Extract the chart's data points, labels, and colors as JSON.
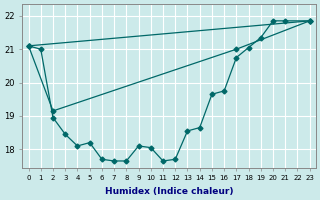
{
  "xlabel": "Humidex (Indice chaleur)",
  "ylabel": "",
  "bg_color": "#cceaea",
  "grid_color": "#ffffff",
  "line_color": "#006868",
  "xlim": [
    -0.5,
    23.5
  ],
  "ylim": [
    17.45,
    22.35
  ],
  "xticks": [
    0,
    1,
    2,
    3,
    4,
    5,
    6,
    7,
    8,
    9,
    10,
    11,
    12,
    13,
    14,
    15,
    16,
    17,
    18,
    19,
    20,
    21,
    22,
    23
  ],
  "yticks": [
    18,
    19,
    20,
    21,
    22
  ],
  "curve_x": [
    0,
    1,
    2,
    3,
    4,
    5,
    6,
    7,
    8,
    9,
    10,
    11,
    12,
    13,
    14,
    15,
    16,
    17,
    18,
    19,
    20,
    21,
    23
  ],
  "curve_y": [
    21.1,
    21.0,
    18.95,
    18.45,
    18.1,
    18.2,
    17.7,
    17.65,
    17.65,
    18.1,
    18.05,
    17.65,
    17.7,
    18.55,
    18.65,
    19.65,
    19.75,
    20.75,
    21.05,
    21.35,
    21.85,
    21.85,
    21.85
  ],
  "line1_x": [
    0,
    23
  ],
  "line1_y": [
    21.1,
    21.85
  ],
  "line2_x": [
    0,
    2,
    17,
    23
  ],
  "line2_y": [
    21.1,
    19.15,
    21.0,
    21.85
  ]
}
